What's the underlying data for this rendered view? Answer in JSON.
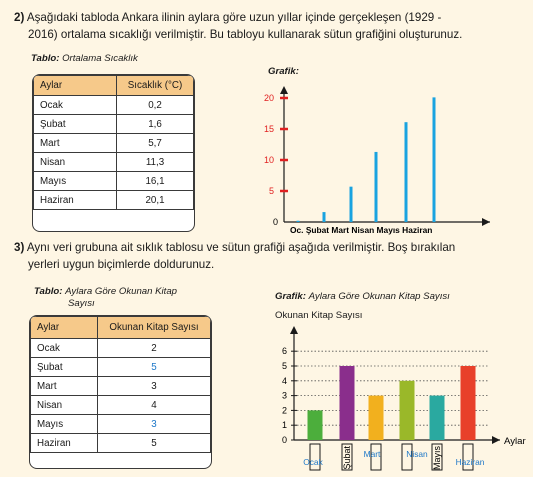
{
  "q2": {
    "number": "2)",
    "text_line1": "Aşağıdaki tabloda Ankara ilinin aylara göre uzun yıllar içinde gerçekleşen (1929 -",
    "text_line2": "2016) ortalama sıcaklığı verilmiştir. Bu tabloyu kullanarak sütun grafiğini oluşturunuz.",
    "table_caption_bold": "Tablo:",
    "table_caption": "Ortalama Sıcaklık",
    "table": {
      "headers": [
        "Aylar",
        "Sıcaklık (°C)"
      ],
      "rows": [
        [
          "Ocak",
          "0,2"
        ],
        [
          "Şubat",
          "1,6"
        ],
        [
          "Mart",
          "5,7"
        ],
        [
          "Nisan",
          "11,3"
        ],
        [
          "Mayıs",
          "16,1"
        ],
        [
          "Haziran",
          "20,1"
        ]
      ]
    },
    "graph_label": "Grafik:",
    "chart_x_labels": "Oc. Şubat Mart Nisan Mayıs Haziran"
  },
  "q3": {
    "number": "3)",
    "text_line1": "Aynı veri grubuna ait sıklık tablosu ve sütun grafiği aşağıda verilmiştir. Boş bırakılan",
    "text_line2": "yerleri uygun biçimlerde doldurunuz.",
    "table_caption_bold": "Tablo:",
    "table_caption_line1": "Aylara Göre Okunan Kitap",
    "table_caption_line2": "Sayısı",
    "table": {
      "headers": [
        "Aylar",
        "Okunan Kitap Sayısı"
      ],
      "rows": [
        [
          "Ocak",
          "2"
        ],
        [
          "Şubat",
          "5"
        ],
        [
          "Mart",
          "3"
        ],
        [
          "Nisan",
          "4"
        ],
        [
          "Mayıs",
          "3"
        ],
        [
          "Haziran",
          "5"
        ]
      ]
    },
    "graph_caption_bold": "Grafik:",
    "graph_caption": "Aylara Göre Okunan Kitap Sayısı",
    "y_axis_title": "Okunan Kitap Sayısı",
    "x_axis_title": "Aylar"
  },
  "colors": {
    "background": "#fef6e4",
    "table_header": "#f6c98a",
    "handwritten_blue": "#1e78c8",
    "axis_red": "#e02020",
    "bar_blue": "#19a3e0"
  },
  "chart_data": [
    {
      "type": "bar",
      "categories": [
        "Ocak",
        "Şubat",
        "Mart",
        "Nisan",
        "Mayıs",
        "Haziran"
      ],
      "values": [
        0.2,
        1.6,
        5.7,
        11.3,
        16.1,
        20.1
      ],
      "title": "",
      "xlabel": "",
      "ylabel": "",
      "yticks": [
        "5",
        "10",
        "15",
        "20"
      ],
      "ylim": [
        0,
        22
      ],
      "zero_label": "0",
      "bar_color": "#19a3e0"
    },
    {
      "type": "bar",
      "categories": [
        "Ocak",
        "Şubat",
        "Mart",
        "Nisan",
        "Mayıs",
        "Haziran"
      ],
      "written_labels": [
        "Ocak",
        "",
        "Mart",
        "Nisan",
        "",
        "Haziran"
      ],
      "printed_labels": [
        "",
        "Şubat",
        "",
        "",
        "Mayıs",
        ""
      ],
      "values": [
        2,
        5,
        3,
        4,
        3,
        5
      ],
      "bar_colors": [
        "#4cae3c",
        "#8a2e8c",
        "#f2b01e",
        "#9ab829",
        "#2aa9a0",
        "#e8402a"
      ],
      "title": "Aylara Göre Okunan Kitap Sayısı",
      "xlabel": "Aylar",
      "ylabel": "Okunan Kitap Sayısı",
      "yticks": [
        "0",
        "1",
        "2",
        "3",
        "4",
        "5",
        "6"
      ],
      "ylim": [
        0,
        6
      ]
    }
  ]
}
